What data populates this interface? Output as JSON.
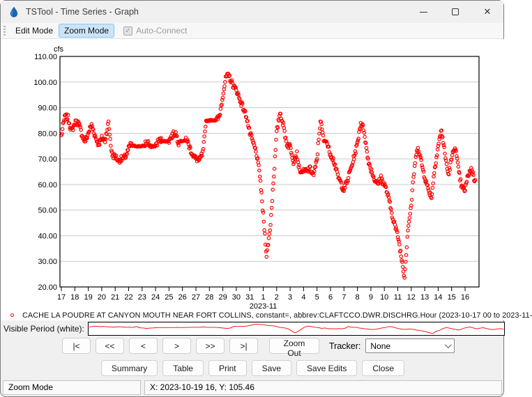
{
  "window": {
    "title": "TSTool - Time Series - Graph",
    "controls": {
      "minimize": "minimize",
      "maximize": "maximize",
      "close": "✕"
    }
  },
  "toolbar": {
    "edit_mode_label": "Edit Mode",
    "zoom_mode_label": "Zoom Mode",
    "active_mode": "Zoom Mode",
    "auto_connect_label": "Auto-Connect",
    "auto_connect_checked": true,
    "auto_connect_check_glyph": "✓"
  },
  "chart_data": {
    "type": "scatter",
    "title": "",
    "ylabel": "cfs",
    "ylim": [
      20,
      110
    ],
    "yticks": [
      110,
      100,
      90,
      80,
      70,
      60,
      50,
      40,
      30,
      20
    ],
    "xtick_labels": [
      "17",
      "18",
      "19",
      "20",
      "21",
      "22",
      "23",
      "24",
      "25",
      "26",
      "27",
      "28",
      "29",
      "30",
      "31",
      "1",
      "2",
      "3",
      "4",
      "5",
      "6",
      "7",
      "8",
      "9",
      "10",
      "11",
      "12",
      "13",
      "14",
      "15",
      "16"
    ],
    "x_month_label": "2023-11",
    "x_month_label_tick_index": 15,
    "grid": true,
    "marker": "open-circle",
    "background": "#ffffff",
    "grid_color": "#c9c9c9",
    "series": [
      {
        "name": "CACHE LA POUDRE AT CANYON MOUTH NEAR FORT COLLINS",
        "color": "#ff0000",
        "start": "2023-10-17 00",
        "end": "2023-11-16 18",
        "interval_hours": 6,
        "values": [
          79,
          85,
          86,
          82,
          84,
          83,
          80,
          78,
          80,
          82,
          79,
          77,
          78,
          76,
          84,
          73,
          71,
          68,
          70,
          72,
          74,
          75,
          75,
          75,
          75,
          75,
          76,
          75,
          75,
          76,
          77,
          77,
          77,
          78,
          80,
          77,
          77,
          77,
          75,
          73,
          70,
          68,
          72,
          85,
          85,
          85,
          85,
          88,
          95,
          101,
          102,
          100,
          97,
          92,
          90,
          88,
          80,
          75,
          72,
          65,
          48,
          31,
          42,
          62,
          80,
          87,
          83,
          77,
          75,
          68,
          72,
          65,
          65,
          64,
          66,
          65,
          70,
          84,
          77,
          77,
          72,
          68,
          64,
          62,
          58,
          60,
          66,
          72,
          76,
          83,
          81,
          72,
          66,
          61,
          60,
          64,
          60,
          55,
          50,
          46,
          40,
          31,
          24,
          44,
          52,
          66,
          75,
          70,
          63,
          57,
          55,
          68,
          75,
          80,
          72,
          65,
          70,
          74,
          66,
          60,
          58,
          63,
          66,
          62
        ]
      }
    ]
  },
  "legend": {
    "marker": "open-circle",
    "marker_color": "#ff0000",
    "text": "CACHE LA POUDRE AT CANYON MOUTH NEAR FORT COLLINS, constant=, abbrev:CLAFTCCO.DWR.DISCHRG.Hour (2023-10-17 00 to 2023-11-"
  },
  "visible_period": {
    "label": "Visible Period (white):",
    "line_color": "#ff0000"
  },
  "nav": {
    "buttons": [
      "|<",
      "<<",
      "<",
      ">",
      ">>",
      ">|"
    ],
    "zoom_out_label": "Zoom Out",
    "tracker_label": "Tracker:",
    "tracker_value": "None"
  },
  "actions": [
    "Summary",
    "Table",
    "Print",
    "Save",
    "Save Edits",
    "Close"
  ],
  "statusbar": {
    "mode": "Zoom Mode",
    "coordinates": "X:  2023-10-19 16,  Y:  105.46"
  }
}
